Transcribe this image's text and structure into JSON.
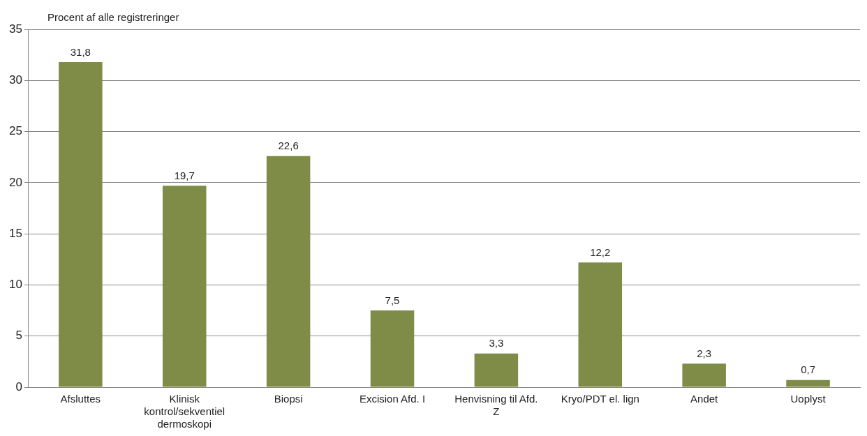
{
  "chart_data": {
    "type": "bar",
    "ylabel": "Procent af alle registreringer",
    "categories": [
      "Afsluttes",
      "Klinisk kontrol/sekventiel dermoskopi",
      "Biopsi",
      "Excision Afd. I",
      "Henvisning til Afd. Z",
      "Kryo/PDT el. lign",
      "Andet",
      "Uoplyst"
    ],
    "values": [
      31.8,
      19.7,
      22.6,
      7.5,
      3.3,
      12.2,
      2.3,
      0.7
    ],
    "value_labels": [
      "31,8",
      "19,7",
      "22,6",
      "7,5",
      "3,3",
      "12,2",
      "2,3",
      "0,7"
    ],
    "color": "#7f8c47",
    "ylim": [
      0,
      35
    ],
    "yticks": [
      0,
      5,
      10,
      15,
      20,
      25,
      30,
      35
    ],
    "grid": "y",
    "legend": false
  }
}
